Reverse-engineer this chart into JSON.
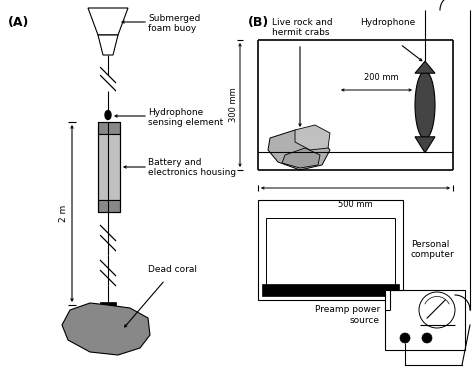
{
  "fig_width": 4.74,
  "fig_height": 3.75,
  "dpi": 100,
  "bg_color": "#ffffff",
  "label_A": "(A)",
  "label_B": "(B)",
  "ann_A": {
    "foam_buoy": "Submerged\nfoam buoy",
    "hydrophone_sense": "Hydrophone\nsensing element",
    "battery": "Battery and\nelectronics housing",
    "dead_coral": "Dead coral",
    "two_m": "2 m"
  },
  "ann_B": {
    "live_rock": "Live rock and\nhermit crabs",
    "hydrophone": "Hydrophone",
    "dim_200": "200 mm",
    "dim_300": "300 mm",
    "dim_500": "500 mm",
    "pc": "Personal\ncomputer",
    "preamp": "Preamp power\nsource"
  }
}
